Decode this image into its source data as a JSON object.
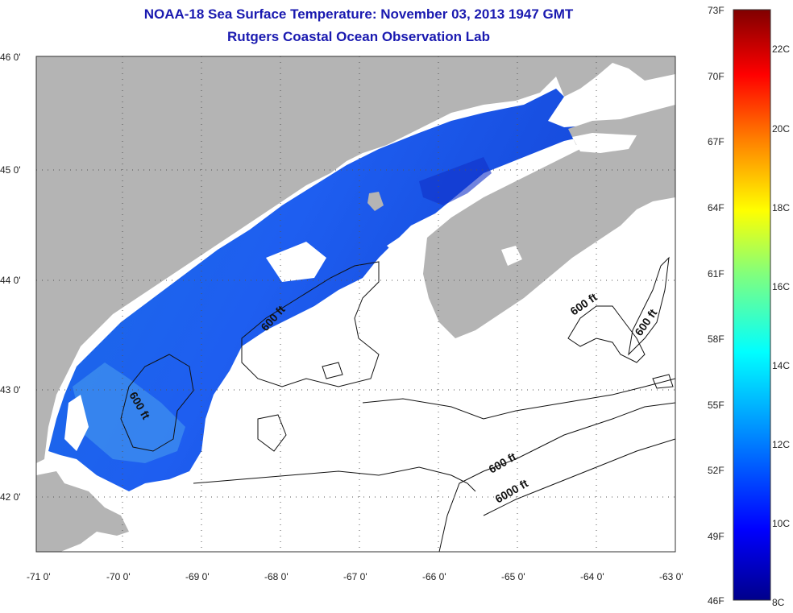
{
  "title": "NOAA-18 Sea Surface Temperature:  November 03, 2013 1947 GMT",
  "subtitle": "Rutgers Coastal Ocean Observation Lab",
  "map": {
    "lat_labels": [
      "46 0'",
      "45 0'",
      "44 0'",
      "43 0'",
      "42 0'"
    ],
    "lon_labels": [
      "-71 0'",
      "-70 0'",
      "-69 0'",
      "-68 0'",
      "-67 0'",
      "-66 0'",
      "-65 0'",
      "-64 0'",
      "-63 0'"
    ],
    "lon_range": [
      -71,
      -63
    ],
    "lat_range": [
      41.5,
      46
    ],
    "contour_labels": [
      "600 ft",
      "600 ft",
      "600 ft",
      "600 ft",
      "600 ft",
      "6000 ft"
    ],
    "colors": {
      "land": "#b4b4b4",
      "cloud": "#ffffff"
    }
  },
  "colorbar": {
    "f_labels": [
      "73F",
      "70F",
      "67F",
      "64F",
      "61F",
      "58F",
      "55F",
      "52F",
      "49F",
      "46F"
    ],
    "c_labels": [
      "22C",
      "20C",
      "18C",
      "16C",
      "14C",
      "12C",
      "10C",
      "8C"
    ],
    "f_range": [
      46,
      73
    ]
  }
}
